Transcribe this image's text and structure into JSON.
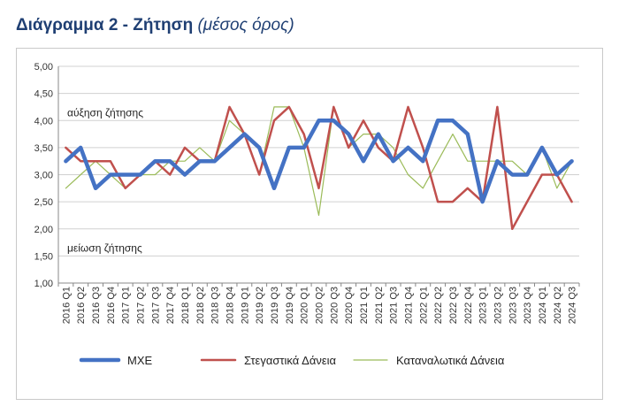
{
  "header": {
    "title": "Διάγραμμα 2 - Ζήτηση",
    "subtitle": "(μέσος όρος)"
  },
  "chart_data": {
    "type": "line",
    "title": "Διάγραμμα 2 - Ζήτηση (μέσος όρος)",
    "categories": [
      "2016 Q1",
      "2016 Q2",
      "2016 Q3",
      "2016 Q4",
      "2017 Q1",
      "2017 Q2",
      "2017 Q3",
      "2017 Q4",
      "2018 Q1",
      "2018 Q2",
      "2018 Q3",
      "2018 Q4",
      "2019 Q1",
      "2019 Q2",
      "2019 Q3",
      "2019 Q4",
      "2020 Q1",
      "2020 Q2",
      "2020 Q3",
      "2020 Q4",
      "2021 Q1",
      "2021 Q2",
      "2021 Q3",
      "2021 Q4",
      "2022 Q1",
      "2022 Q2",
      "2022 Q3",
      "2022 Q4",
      "2023 Q1",
      "2023 Q2",
      "2023 Q3",
      "2023 Q4",
      "2024 Q1",
      "2024 Q2",
      "2024 Q3"
    ],
    "ylim": [
      1.0,
      5.0
    ],
    "yticks": [
      "1,00",
      "1,50",
      "2,00",
      "2,50",
      "3,00",
      "3,50",
      "4,00",
      "4,50",
      "5,00"
    ],
    "ytick_values": [
      1.0,
      1.5,
      2.0,
      2.5,
      3.0,
      3.5,
      4.0,
      4.5,
      5.0
    ],
    "grid": true,
    "legend": "bottom",
    "annotations": [
      {
        "text": "αύξηση ζήτησης",
        "y": 4.0
      },
      {
        "text": "μείωση ζήτησης",
        "y": 1.5
      }
    ],
    "series": [
      {
        "name": "ΜΧΕ",
        "color": "#4472c4",
        "values": [
          3.25,
          3.5,
          2.75,
          3.0,
          3.0,
          3.0,
          3.25,
          3.25,
          3.0,
          3.25,
          3.25,
          3.5,
          3.75,
          3.5,
          2.75,
          3.5,
          3.5,
          4.0,
          4.0,
          3.75,
          3.25,
          3.75,
          3.25,
          3.5,
          3.25,
          4.0,
          4.0,
          3.75,
          2.5,
          3.25,
          3.0,
          3.0,
          3.5,
          3.0,
          3.25
        ]
      },
      {
        "name": "Στεγαστικά Δάνεια",
        "color": "#c0504d",
        "values": [
          3.5,
          3.25,
          3.25,
          3.25,
          2.75,
          3.0,
          3.25,
          3.0,
          3.5,
          3.25,
          3.25,
          4.25,
          3.75,
          3.0,
          4.0,
          4.25,
          3.75,
          2.75,
          4.25,
          3.5,
          4.0,
          3.5,
          3.25,
          4.25,
          3.5,
          2.5,
          2.5,
          2.75,
          2.5,
          4.25,
          2.0,
          2.5,
          3.0,
          3.0,
          2.5
        ]
      },
      {
        "name": "Καταναλωτικά Δάνεια",
        "color": "#9bbb59",
        "values": [
          2.75,
          3.0,
          3.25,
          3.0,
          2.75,
          3.0,
          3.0,
          3.25,
          3.25,
          3.5,
          3.25,
          4.0,
          3.75,
          3.0,
          4.25,
          4.25,
          3.5,
          2.25,
          4.25,
          3.5,
          3.75,
          3.75,
          3.5,
          3.0,
          2.75,
          3.25,
          3.75,
          3.25,
          3.25,
          3.25,
          3.25,
          3.0,
          3.5,
          2.75,
          3.25
        ]
      }
    ]
  }
}
